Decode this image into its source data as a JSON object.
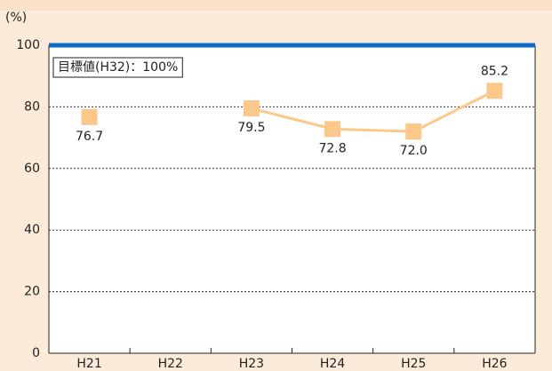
{
  "chart_data": {
    "type": "line",
    "ylabel": "(%)",
    "categories": [
      "H21",
      "H22",
      "H23",
      "H24",
      "H25",
      "H26"
    ],
    "series": [
      {
        "color": "#fbc88a",
        "values": [
          76.7,
          null,
          79.5,
          72.8,
          72.0,
          85.2
        ],
        "value_labels": [
          "76.7",
          null,
          "79.5",
          "72.8",
          "72.0",
          "85.2"
        ]
      }
    ],
    "ylim": [
      0,
      100
    ],
    "yticks": [
      0,
      20,
      40,
      60,
      80,
      100
    ],
    "grid": true,
    "target_value": 100,
    "target_color": "#0a6cc4",
    "target_label": "目標値(H32)：100%"
  }
}
